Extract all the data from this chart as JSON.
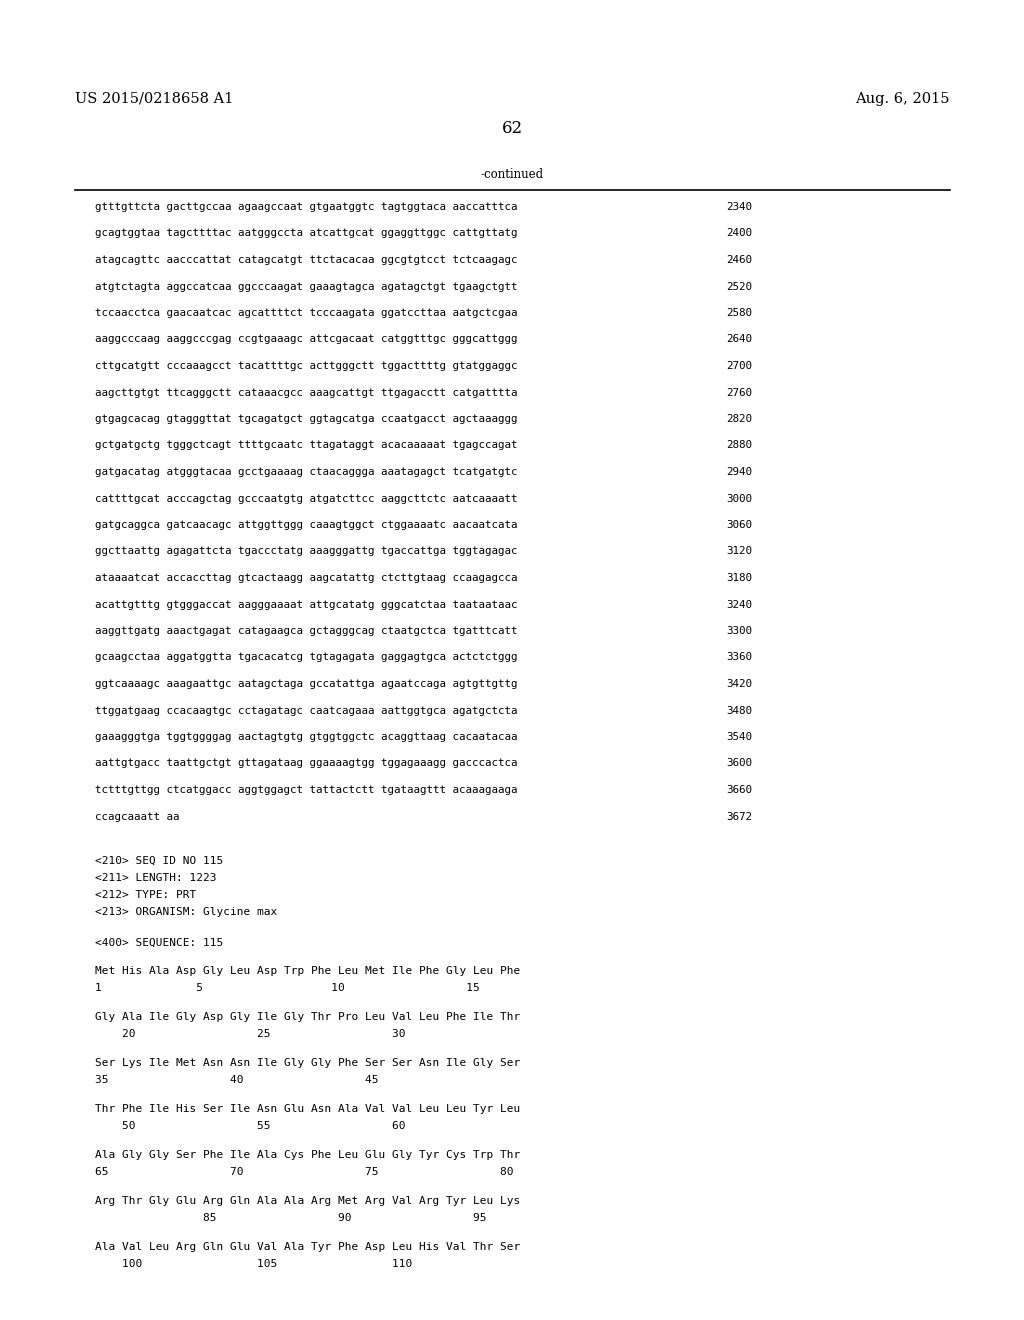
{
  "patent_number": "US 2015/0218658 A1",
  "date": "Aug. 6, 2015",
  "page_number": "62",
  "continued_label": "-continued",
  "sequence_lines": [
    [
      "gtttgttcta gacttgccaa agaagccaat gtgaatggtc tagtggtaca aaccatttca",
      "2340"
    ],
    [
      "gcagtggtaa tagcttttac aatgggccta atcattgcat ggaggttggc cattgttatg",
      "2400"
    ],
    [
      "atagcagttc aacccattat catagcatgt ttctacacaa ggcgtgtcct tctcaagagc",
      "2460"
    ],
    [
      "atgtctagta aggccatcaa ggcccaagat gaaagtagca agatagctgt tgaagctgtt",
      "2520"
    ],
    [
      "tccaacctca gaacaatcac agcattttct tcccaagata ggatccttaa aatgctcgaa",
      "2580"
    ],
    [
      "aaggcccaag aaggcccgag ccgtgaaagc attcgacaat catggtttgc gggcattggg",
      "2640"
    ],
    [
      "cttgcatgtt cccaaagcct tacattttgc acttgggctt tggacttttg gtatggaggc",
      "2700"
    ],
    [
      "aagcttgtgt ttcagggctt cataaacgcc aaagcattgt ttgagacctt catgatttta",
      "2760"
    ],
    [
      "gtgagcacag gtagggttat tgcagatgct ggtagcatga ccaatgacct agctaaaggg",
      "2820"
    ],
    [
      "gctgatgctg tgggctcagt ttttgcaatc ttagataggt acacaaaaat tgagccagat",
      "2880"
    ],
    [
      "gatgacatag atgggtacaa gcctgaaaag ctaacaggga aaatagagct tcatgatgtc",
      "2940"
    ],
    [
      "cattttgcat acccagctag gcccaatgtg atgatcttcc aaggcttctc aatcaaaatt",
      "3000"
    ],
    [
      "gatgcaggca gatcaacagc attggttggg caaagtggct ctggaaaatc aacaatcata",
      "3060"
    ],
    [
      "ggcttaattg agagattcta tgaccctatg aaagggattg tgaccattga tggtagagac",
      "3120"
    ],
    [
      "ataaaatcat accaccttag gtcactaagg aagcatattg ctcttgtaag ccaagagcca",
      "3180"
    ],
    [
      "acattgtttg gtgggaccat aagggaaaat attgcatatg gggcatctaa taataataac",
      "3240"
    ],
    [
      "aaggttgatg aaactgagat catagaagca gctagggcag ctaatgctca tgatttcatt",
      "3300"
    ],
    [
      "gcaagcctaa aggatggtta tgacacatcg tgtagagata gaggagtgca actctctggg",
      "3360"
    ],
    [
      "ggtcaaaagc aaagaattgc aatagctaga gccatattga agaatccaga agtgttgttg",
      "3420"
    ],
    [
      "ttggatgaag ccacaagtgc cctagatagc caatcagaaa aattggtgca agatgctcta",
      "3480"
    ],
    [
      "gaaagggtga tggtggggag aactagtgtg gtggtggctc acaggttaag cacaatacaa",
      "3540"
    ],
    [
      "aattgtgacc taattgctgt gttagataag ggaaaagtgg tggagaaagg gacccactca",
      "3600"
    ],
    [
      "tctttgttgg ctcatggacc aggtggagct tattactctt tgataagttt acaaagaaga",
      "3660"
    ],
    [
      "ccagcaaatt aa",
      "3672"
    ]
  ],
  "metadata_lines": [
    "<210> SEQ ID NO 115",
    "<211> LENGTH: 1223",
    "<212> TYPE: PRT",
    "<213> ORGANISM: Glycine max"
  ],
  "sequence_label": "<400> SEQUENCE: 115",
  "protein_lines": [
    {
      "aa": "Met His Ala Asp Gly Leu Asp Trp Phe Leu Met Ile Phe Gly Leu Phe",
      "nums": "1              5                   10                  15"
    },
    {
      "aa": "Gly Ala Ile Gly Asp Gly Ile Gly Thr Pro Leu Val Leu Phe Ile Thr",
      "nums": "    20                  25                  30"
    },
    {
      "aa": "Ser Lys Ile Met Asn Asn Ile Gly Gly Phe Ser Ser Asn Ile Gly Ser",
      "nums": "35                  40                  45"
    },
    {
      "aa": "Thr Phe Ile His Ser Ile Asn Glu Asn Ala Val Val Leu Leu Tyr Leu",
      "nums": "    50                  55                  60"
    },
    {
      "aa": "Ala Gly Gly Ser Phe Ile Ala Cys Phe Leu Glu Gly Tyr Cys Trp Thr",
      "nums": "65                  70                  75                  80"
    },
    {
      "aa": "Arg Thr Gly Glu Arg Gln Ala Ala Arg Met Arg Val Arg Tyr Leu Lys",
      "nums": "                85                  90                  95"
    },
    {
      "aa": "Ala Val Leu Arg Gln Glu Val Ala Tyr Phe Asp Leu His Val Thr Ser",
      "nums": "    100                 105                 110"
    }
  ],
  "background_color": "#ffffff",
  "text_color": "#000000",
  "seq_font_size": 7.8,
  "meta_font_size": 8.0,
  "header_font_size": 10.5,
  "page_font_size": 12,
  "continued_font_size": 8.5
}
